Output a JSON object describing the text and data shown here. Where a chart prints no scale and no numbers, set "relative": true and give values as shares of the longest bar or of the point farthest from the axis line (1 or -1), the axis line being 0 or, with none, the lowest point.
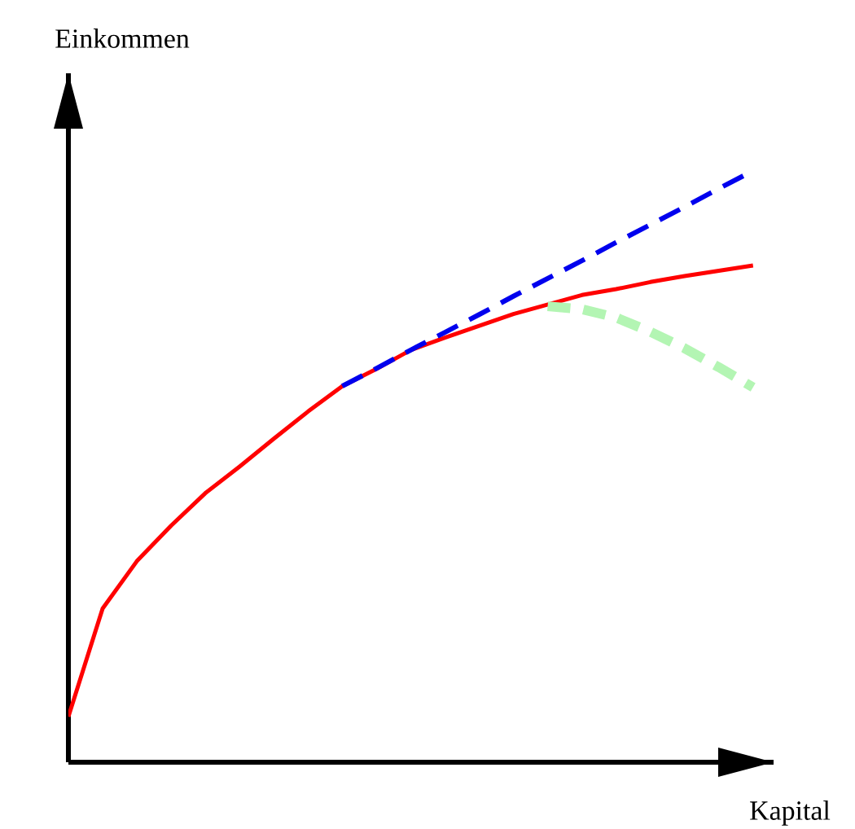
{
  "chart_data": {
    "type": "line",
    "xlabel": "Kapital",
    "ylabel": "Einkommen",
    "relative": true,
    "marker": "none",
    "categories": [
      null,
      null,
      null,
      null,
      null,
      null,
      null,
      null,
      null,
      null,
      null,
      null,
      null,
      null,
      null,
      null,
      null,
      null,
      null,
      null,
      null
    ],
    "series": [
      {
        "color": "#ff0000",
        "line_style": "solid",
        "values": [
          0.077,
          0.26,
          0.34,
          0.4,
          0.455,
          0.5,
          0.547,
          0.593,
          0.636,
          0.665,
          0.697,
          0.718,
          0.738,
          0.758,
          0.774,
          0.79,
          0.8,
          0.812,
          0.822,
          0.831,
          0.84
        ]
      },
      {
        "color": "#0000ee",
        "line_style": "dashed",
        "values": [
          null,
          null,
          null,
          null,
          null,
          null,
          null,
          null,
          0.636,
          0.666,
          0.697,
          0.727,
          0.757,
          0.788,
          0.818,
          0.848,
          0.879,
          0.909,
          0.939,
          0.97,
          1.0
        ]
      },
      {
        "color": "#b3f5b3",
        "line_style": "dashed",
        "values": [
          null,
          null,
          null,
          null,
          null,
          null,
          null,
          null,
          null,
          null,
          null,
          null,
          null,
          null,
          0.771,
          0.766,
          0.752,
          0.728,
          0.7,
          0.668,
          0.634
        ]
      }
    ]
  }
}
